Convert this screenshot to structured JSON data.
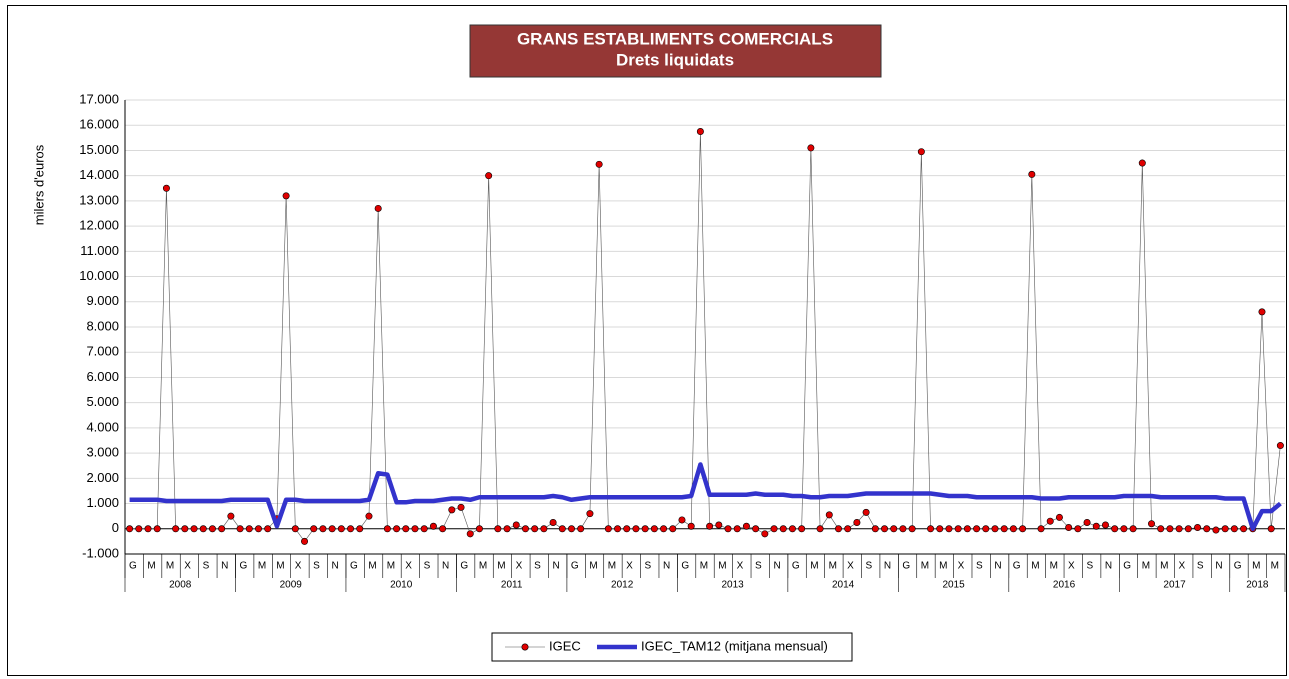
{
  "chart_data": {
    "type": "line",
    "title": "GRANS ESTABLIMENTS COMERCIALS",
    "subtitle": "Drets liquidats",
    "y_label": "milers d'euros",
    "categories": [
      "G",
      null,
      "M",
      null,
      "M",
      null,
      "X",
      null,
      "S",
      null,
      "N",
      null,
      "G",
      null,
      "M",
      null,
      "M",
      null,
      "X",
      null,
      "S",
      null,
      "N",
      null,
      "G",
      null,
      "M",
      null,
      "M",
      null,
      "X",
      null,
      "S",
      null,
      "N",
      null,
      "G",
      null,
      "M",
      null,
      "M",
      null,
      "X",
      null,
      "S",
      null,
      "N",
      null,
      "G",
      null,
      "M",
      null,
      "M",
      null,
      "X",
      null,
      "S",
      null,
      "N",
      null,
      "G",
      null,
      "M",
      null,
      "M",
      null,
      "X",
      null,
      "S",
      null,
      "N",
      null,
      "G",
      null,
      "M",
      null,
      "M",
      null,
      "X",
      null,
      "S",
      null,
      "N",
      null,
      "G",
      null,
      "M",
      null,
      "M",
      null,
      "X",
      null,
      "S",
      null,
      "N",
      null,
      "G",
      null,
      "M",
      null,
      "M",
      null,
      "X",
      null,
      "S",
      null,
      "N",
      null,
      "G",
      null,
      "M",
      null,
      "M",
      null,
      "X",
      null,
      "S",
      null,
      "N",
      null,
      "G",
      null,
      "M",
      null,
      "M",
      null
    ],
    "years": [
      "2008",
      "2009",
      "2010",
      "2011",
      "2012",
      "2013",
      "2014",
      "2015",
      "2016",
      "2017",
      "2018"
    ],
    "series": [
      {
        "name": "IGEC",
        "color": "#e00000",
        "line_color": "#555555",
        "style": "thin-dots",
        "values": [
          0,
          0,
          0,
          0,
          13500,
          0,
          0,
          0,
          0,
          0,
          0,
          500,
          0,
          0,
          0,
          0,
          400,
          13200,
          0,
          -500,
          0,
          0,
          0,
          0,
          0,
          0,
          500,
          12700,
          0,
          0,
          0,
          0,
          0,
          100,
          0,
          750,
          850,
          -200,
          0,
          14000,
          0,
          0,
          150,
          0,
          0,
          0,
          250,
          0,
          0,
          0,
          600,
          14450,
          0,
          0,
          0,
          0,
          0,
          0,
          0,
          0,
          350,
          100,
          15750,
          100,
          150,
          0,
          0,
          100,
          0,
          -200,
          0,
          0,
          0,
          0,
          15100,
          0,
          550,
          0,
          0,
          250,
          650,
          0,
          0,
          0,
          0,
          0,
          14950,
          0,
          0,
          0,
          0,
          0,
          0,
          0,
          0,
          0,
          0,
          0,
          14050,
          0,
          300,
          450,
          50,
          0,
          250,
          100,
          150,
          0,
          0,
          0,
          14500,
          200,
          0,
          0,
          0,
          0,
          50,
          0,
          -50,
          0,
          0,
          0,
          0,
          8600,
          0,
          3300
        ]
      },
      {
        "name": "IGEC_TAM12 (mitjana mensual)",
        "color": "#3333cc",
        "style": "thick",
        "values": [
          1150,
          1150,
          1150,
          1150,
          1100,
          1100,
          1100,
          1100,
          1100,
          1100,
          1100,
          1150,
          1150,
          1150,
          1150,
          1150,
          100,
          1150,
          1150,
          1100,
          1100,
          1100,
          1100,
          1100,
          1100,
          1100,
          1150,
          2200,
          2150,
          1050,
          1050,
          1100,
          1100,
          1100,
          1150,
          1200,
          1200,
          1150,
          1250,
          1250,
          1250,
          1250,
          1250,
          1250,
          1250,
          1250,
          1300,
          1250,
          1150,
          1200,
          1250,
          1250,
          1250,
          1250,
          1250,
          1250,
          1250,
          1250,
          1250,
          1250,
          1250,
          1300,
          2550,
          1350,
          1350,
          1350,
          1350,
          1350,
          1400,
          1350,
          1350,
          1350,
          1300,
          1300,
          1250,
          1250,
          1300,
          1300,
          1300,
          1350,
          1400,
          1400,
          1400,
          1400,
          1400,
          1400,
          1400,
          1400,
          1350,
          1300,
          1300,
          1300,
          1250,
          1250,
          1250,
          1250,
          1250,
          1250,
          1250,
          1200,
          1200,
          1200,
          1250,
          1250,
          1250,
          1250,
          1250,
          1250,
          1300,
          1300,
          1300,
          1300,
          1250,
          1250,
          1250,
          1250,
          1250,
          1250,
          1250,
          1200,
          1200,
          1200,
          0,
          700,
          700,
          1000
        ]
      }
    ],
    "ylim": [
      -1000,
      17000
    ],
    "yticks": [
      {
        "value": -1000,
        "label": "-1.000"
      },
      0,
      {
        "value": 1000,
        "label": "1.000"
      },
      {
        "value": 2000,
        "label": "2.000"
      },
      {
        "value": 3000,
        "label": "3.000"
      },
      {
        "value": 4000,
        "label": "4.000"
      },
      {
        "value": 5000,
        "label": "5.000"
      },
      {
        "value": 6000,
        "label": "6.000"
      },
      {
        "value": 7000,
        "label": "7.000"
      },
      {
        "value": 8000,
        "label": "8.000"
      },
      {
        "value": 9000,
        "label": "9.000"
      },
      {
        "value": 10000,
        "label": "10.000"
      },
      {
        "value": 11000,
        "label": "11.000"
      },
      {
        "value": 12000,
        "label": "12.000"
      },
      {
        "value": 13000,
        "label": "13.000"
      },
      {
        "value": 14000,
        "label": "14.000"
      },
      {
        "value": 15000,
        "label": "15.000"
      },
      {
        "value": 16000,
        "label": "16.000"
      },
      {
        "value": 17000,
        "label": "17.000"
      }
    ],
    "grid": true,
    "legend": "bottom"
  }
}
